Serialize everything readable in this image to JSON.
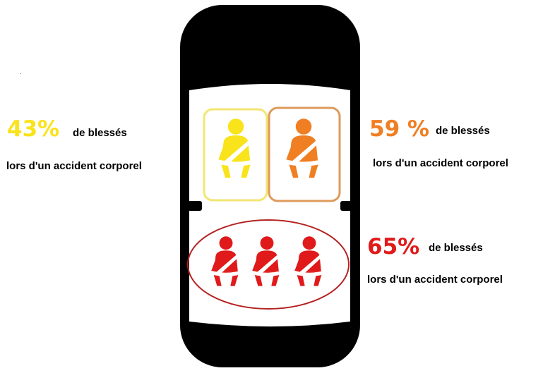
{
  "colors": {
    "car_body": "#000000",
    "cabin": "#ffffff",
    "driver": "#f9e31a",
    "passenger": "#f07e22",
    "rear": "#e01a1a",
    "driver_frame": "#f2e673",
    "passenger_frame": "#de9a5b",
    "rear_frame": "#b52222"
  },
  "icons": [
    "seatbelt-person-icon"
  ],
  "stats": {
    "driver": {
      "percent": "43%",
      "label_line1": "de blessés",
      "label_line2": "lors d'un accident corporel"
    },
    "passenger": {
      "percent": "59 %",
      "label_line1": "de blessés",
      "label_line2": "lors d'un accident corporel"
    },
    "rear": {
      "percent": "65%",
      "label_line1": "de blessés",
      "label_line2": "lors d'un accident corporel"
    }
  }
}
